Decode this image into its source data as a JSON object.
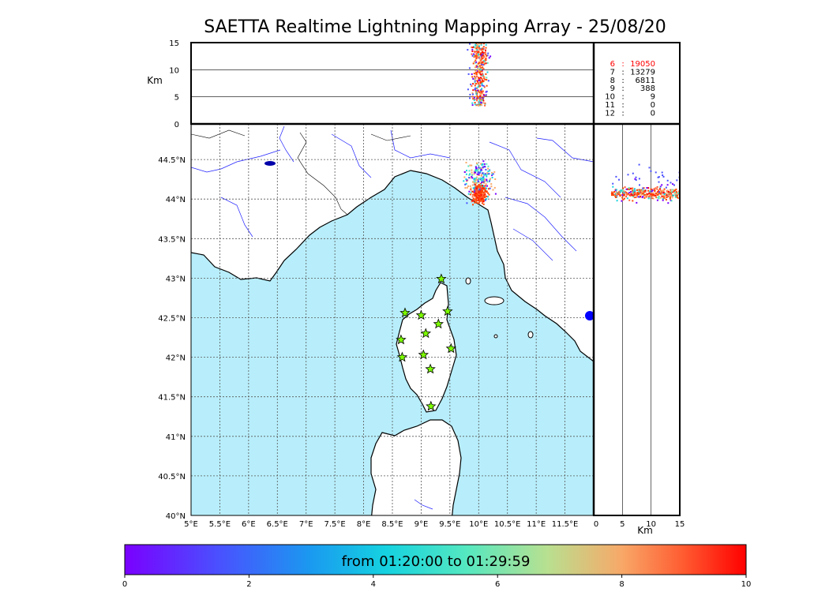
{
  "title": "SAETTA Realtime Lightning Mapping Array - 25/08/20",
  "altitude_panel": {
    "unit_label": "Km",
    "y_ticks": [
      "0",
      "5",
      "10",
      "15"
    ],
    "y_range": [
      0,
      15
    ]
  },
  "counts_table": [
    {
      "stations": "6",
      "sep": ":",
      "count": "19050",
      "color": "#ff0000"
    },
    {
      "stations": "7",
      "sep": ":",
      "count": "13279",
      "color": "#000000"
    },
    {
      "stations": "8",
      "sep": ":",
      "count": "6811",
      "color": "#000000"
    },
    {
      "stations": "9",
      "sep": ":",
      "count": "388",
      "color": "#000000"
    },
    {
      "stations": "10",
      "sep": ":",
      "count": "9",
      "color": "#000000"
    },
    {
      "stations": "11",
      "sep": ":",
      "count": "0",
      "color": "#000000"
    },
    {
      "stations": "12",
      "sep": ":",
      "count": "0",
      "color": "#000000"
    }
  ],
  "map": {
    "lon_ticks": [
      "5°E",
      "5.5°E",
      "6°E",
      "6.5°E",
      "7°E",
      "7.5°E",
      "8°E",
      "8.5°E",
      "9°E",
      "9.5°E",
      "10°E",
      "10.5°E",
      "11°E",
      "11.5°E"
    ],
    "lat_ticks": [
      "40°N",
      "40.5°N",
      "41°N",
      "41.5°N",
      "42°N",
      "42.5°N",
      "43°N",
      "43.5°N",
      "44°N",
      "44.5°N"
    ],
    "lon_range": [
      5.0,
      12.0
    ],
    "lat_range": [
      40.0,
      44.95
    ],
    "sea_color": "#b8eefb",
    "stations": [
      {
        "lon": 9.35,
        "lat": 42.99
      },
      {
        "lon": 8.72,
        "lat": 42.56
      },
      {
        "lon": 9.0,
        "lat": 42.53
      },
      {
        "lon": 9.46,
        "lat": 42.58
      },
      {
        "lon": 9.3,
        "lat": 42.42
      },
      {
        "lon": 9.08,
        "lat": 42.3
      },
      {
        "lon": 8.65,
        "lat": 42.22
      },
      {
        "lon": 9.52,
        "lat": 42.11
      },
      {
        "lon": 8.67,
        "lat": 42.0
      },
      {
        "lon": 9.04,
        "lat": 42.03
      },
      {
        "lon": 9.16,
        "lat": 41.85
      },
      {
        "lon": 9.17,
        "lat": 41.38
      }
    ],
    "lightning_center": {
      "lon": 10.0,
      "lat": 44.08
    }
  },
  "side_panel": {
    "x_ticks": [
      "0",
      "5",
      "10",
      "15"
    ],
    "x_range": [
      0,
      15
    ],
    "unit_label": "Km"
  },
  "colorbar": {
    "label": "from 01:20:00 to 01:29:59",
    "ticks": [
      "0",
      "2",
      "4",
      "6",
      "8",
      "10"
    ],
    "range": [
      0,
      10
    ]
  }
}
